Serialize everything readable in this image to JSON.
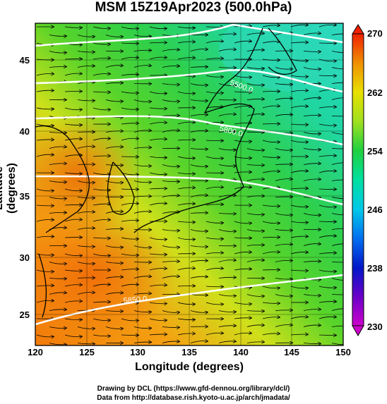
{
  "title": "MSM 15Z19Apr2023 (500.0hPa)",
  "axes": {
    "xlabel": "Longitude (degrees)",
    "ylabel": "Latitude  (degrees)",
    "xticks": [
      "120",
      "125",
      "130",
      "135",
      "140",
      "145",
      "150"
    ],
    "yticks": [
      "45",
      "40",
      "35",
      "30",
      "25"
    ]
  },
  "colorbar": {
    "ticks": [
      "270",
      "262",
      "254",
      "246",
      "238",
      "230"
    ],
    "range": [
      230,
      270
    ]
  },
  "contour_labels": [
    "5500.0",
    "5800.0",
    "5850.0"
  ],
  "credits": {
    "line1": "Drawing by DCL (https://www.gfd-dennou.org/library/dcl/)",
    "line2": "Data from http://database.rish.kyoto-u.ac.jp/arch/jmadata/"
  },
  "map": {
    "lon_range": [
      120,
      150
    ],
    "lat_range": [
      22.5,
      47.5
    ],
    "temperature_field": "shaded",
    "wind_field": "streamlines-with-arrows",
    "height_contours": "white"
  }
}
